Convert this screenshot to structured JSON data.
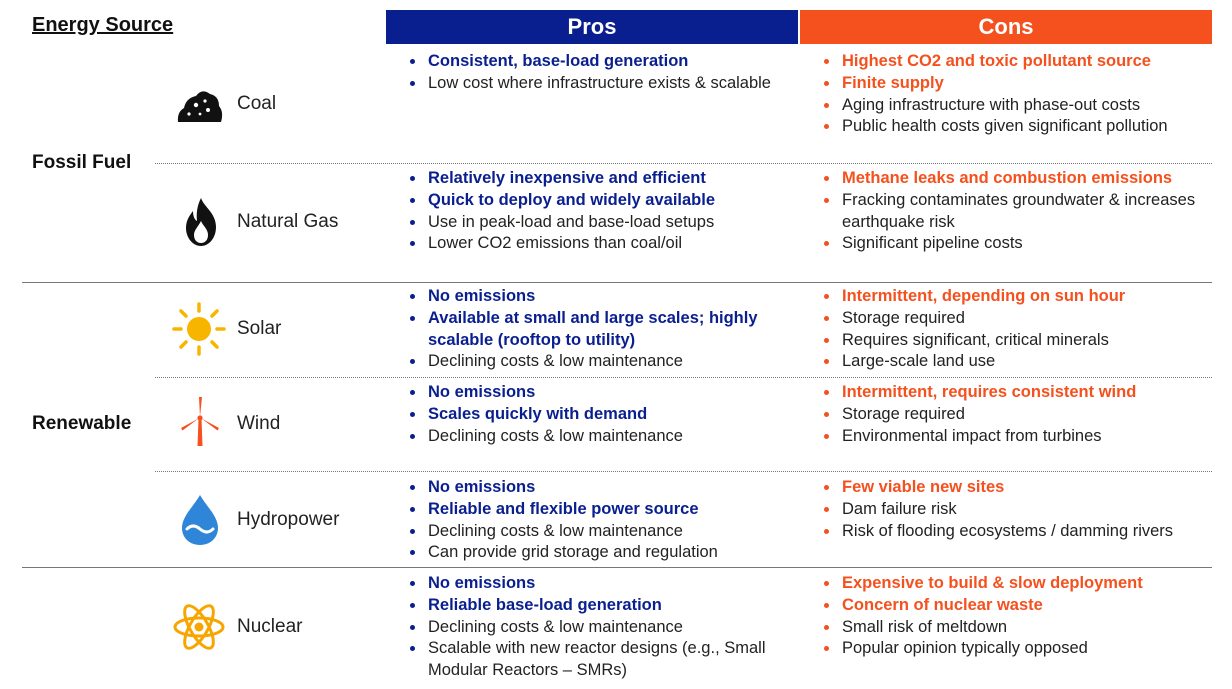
{
  "header": {
    "title": "Energy Source",
    "pros_label": "Pros",
    "cons_label": "Cons",
    "pros_color": "#0a1f8f",
    "cons_color": "#f4511e"
  },
  "groups": {
    "fossil": "Fossil Fuel",
    "renewable": "Renewable"
  },
  "sources": {
    "coal": {
      "name": "Coal",
      "icon": "coal-icon",
      "pros": [
        "Consistent, base-load generation",
        "Low cost where infrastructure exists & scalable"
      ],
      "cons": [
        "Highest CO2 and toxic pollutant source",
        "Finite supply",
        "Aging infrastructure with phase-out costs",
        "Public health costs given significant pollution"
      ]
    },
    "gas": {
      "name": "Natural Gas",
      "icon": "flame-icon",
      "pros": [
        "Relatively inexpensive and efficient",
        "Quick to deploy and widely available",
        "Use in peak-load and base-load setups",
        "Lower CO2 emissions than coal/oil"
      ],
      "cons": [
        "Methane leaks and combustion emissions",
        "Fracking contaminates groundwater & increases earthquake risk",
        "Significant pipeline costs"
      ]
    },
    "solar": {
      "name": "Solar",
      "icon": "sun-icon",
      "pros": [
        "No emissions",
        "Available at small and large scales; highly scalable (rooftop to utility)",
        "Declining costs & low maintenance"
      ],
      "cons": [
        "Intermittent, depending on sun hour",
        "Storage required",
        "Requires significant, critical minerals",
        "Large-scale land use"
      ]
    },
    "wind": {
      "name": "Wind",
      "icon": "wind-turbine-icon",
      "pros": [
        "No emissions",
        "Scales quickly with demand",
        "Declining costs & low maintenance"
      ],
      "cons": [
        "Intermittent, requires consistent wind",
        "Storage required",
        "Environmental impact from turbines"
      ]
    },
    "hydro": {
      "name": "Hydropower",
      "icon": "water-drop-icon",
      "pros": [
        "No emissions",
        "Reliable and flexible power source",
        "Declining costs & low maintenance",
        "Can provide grid storage and regulation"
      ],
      "cons": [
        "Few viable new sites",
        "Dam failure risk",
        "Risk of flooding ecosystems / damming rivers"
      ]
    },
    "nuclear": {
      "name": "Nuclear",
      "icon": "atom-icon",
      "pros": [
        "No emissions",
        "Reliable base-load generation",
        "Declining costs & low maintenance",
        "Scalable with new reactor designs (e.g., Small Modular Reactors – SMRs)"
      ],
      "cons": [
        "Expensive to build & slow deployment",
        "Concern of nuclear waste",
        "Small risk of meltdown",
        "Popular opinion typically opposed"
      ]
    }
  }
}
